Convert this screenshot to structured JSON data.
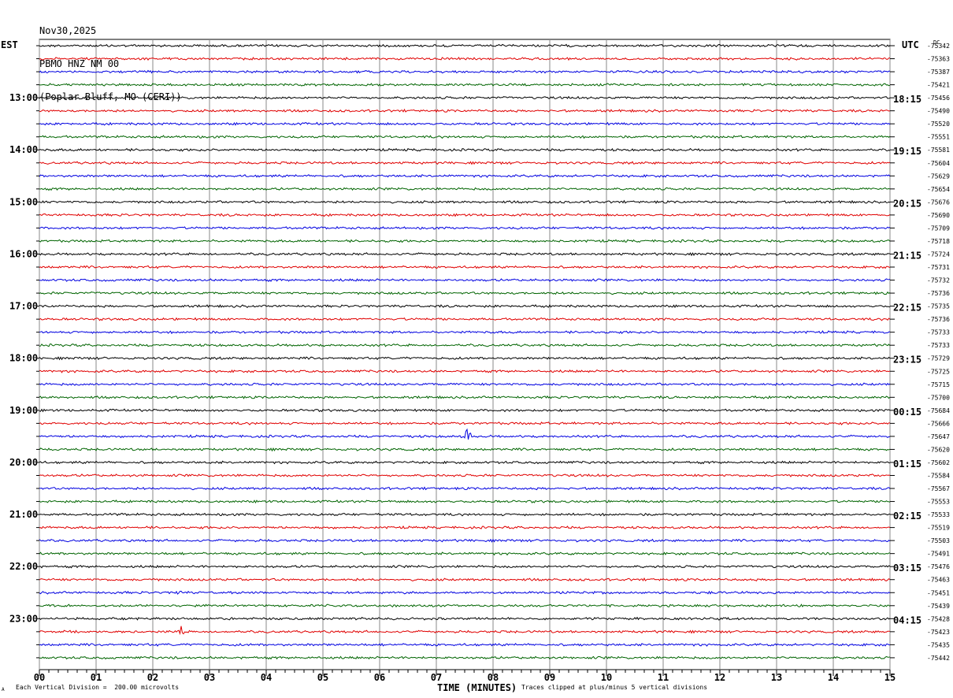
{
  "header": {
    "date": "Nov30,2025",
    "station": "PBMO HNZ NM 00",
    "location": "(Poplar Bluff, MO (CERI))"
  },
  "left_tz": "EST",
  "right_tz": "UTC",
  "dc_label": "DC",
  "footer": {
    "scale_note": "Each Vertical Division =  200.00 microvolts",
    "clip_note": "Traces clipped at plus/minus 5 vertical divisions",
    "corner_mark": "A"
  },
  "colors": {
    "trace_cycle": [
      "#000000",
      "#e00000",
      "#0000e0",
      "#006400"
    ],
    "grid": "#888888"
  },
  "chart_data": {
    "type": "line",
    "title": "",
    "xlabel": "TIME (MINUTES)",
    "ylabel": "",
    "xlim": [
      0,
      15
    ],
    "x_ticks": [
      "00",
      "01",
      "02",
      "03",
      "04",
      "05",
      "06",
      "07",
      "08",
      "09",
      "10",
      "11",
      "12",
      "13",
      "14",
      "15"
    ],
    "left_hour_labels": [
      "13:00",
      "14:00",
      "15:00",
      "16:00",
      "17:00",
      "18:00",
      "19:00",
      "20:00",
      "21:00",
      "22:00",
      "23:00"
    ],
    "right_hour_labels": [
      "18:15",
      "19:15",
      "20:15",
      "21:15",
      "22:15",
      "23:15",
      "00:15",
      "01:15",
      "02:15",
      "03:15",
      "04:15"
    ],
    "dc_offsets": [
      -75342,
      -75363,
      -75387,
      -75421,
      -75456,
      -75490,
      -75520,
      -75551,
      -75581,
      -75604,
      -75629,
      -75654,
      -75676,
      -75690,
      -75709,
      -75718,
      -75724,
      -75731,
      -75732,
      -75736,
      -75735,
      -75736,
      -75733,
      -75733,
      -75729,
      -75725,
      -75715,
      -75700,
      -75684,
      -75666,
      -75647,
      -75620,
      -75602,
      -75584,
      -75567,
      -75553,
      -75533,
      -75519,
      -75503,
      -75491,
      -75476,
      -75463,
      -75451,
      -75439,
      -75428,
      -75423,
      -75435,
      -75442
    ],
    "events": [
      {
        "trace": 30,
        "minute": 7.55,
        "amplitude_divisions": 3.5
      },
      {
        "trace": 42,
        "minute": 2.45,
        "amplitude_divisions": 1.5
      },
      {
        "trace": 42,
        "minute": 3.35,
        "amplitude_divisions": 0.5
      },
      {
        "trace": 45,
        "minute": 2.5,
        "amplitude_divisions": 2.0
      }
    ]
  }
}
